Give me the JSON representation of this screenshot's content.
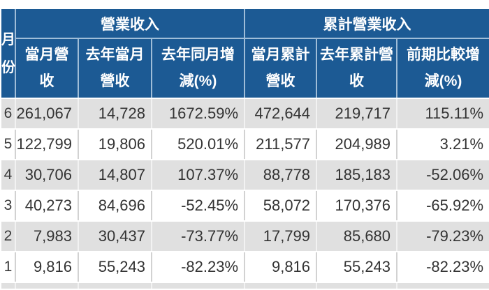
{
  "chart_data": {
    "type": "table",
    "month_column_header": "月\n份",
    "column_groups": [
      {
        "label": "營業收入",
        "span": 3
      },
      {
        "label": "累計營業收入",
        "span": 3
      }
    ],
    "columns": [
      "當月營\n收",
      "去年當月\n營收",
      "去年同月增\n減(%)",
      "當月累計\n營收",
      "去年累計營\n收",
      "前期比較增\n減(%)"
    ],
    "rows": [
      {
        "month": "6",
        "values": [
          "261,067",
          "14,728",
          "1672.59%",
          "472,644",
          "219,717",
          "115.11%"
        ]
      },
      {
        "month": "5",
        "values": [
          "122,799",
          "19,806",
          "520.01%",
          "211,577",
          "204,989",
          "3.21%"
        ]
      },
      {
        "month": "4",
        "values": [
          "30,706",
          "14,807",
          "107.37%",
          "88,778",
          "185,183",
          "-52.06%"
        ]
      },
      {
        "month": "3",
        "values": [
          "40,273",
          "84,696",
          "-52.45%",
          "58,072",
          "170,376",
          "-65.92%"
        ]
      },
      {
        "month": "2",
        "values": [
          "7,983",
          "30,437",
          "-73.77%",
          "17,799",
          "85,680",
          "-79.23%"
        ]
      },
      {
        "month": "1",
        "values": [
          "9,816",
          "55,243",
          "-82.23%",
          "9,816",
          "55,243",
          "-82.23%"
        ]
      }
    ]
  },
  "colors": {
    "header_bg": "#1C5A94",
    "header_text": "#FFFFFF",
    "header_divider": "#9FBDD8",
    "row_alt_bg": "#E0E0E0",
    "row_bg": "#FFFFFF",
    "data_text": "#333333",
    "grid_line_on_white": "#D2D2D2",
    "grid_line_on_gray": "#F2F2F2"
  }
}
